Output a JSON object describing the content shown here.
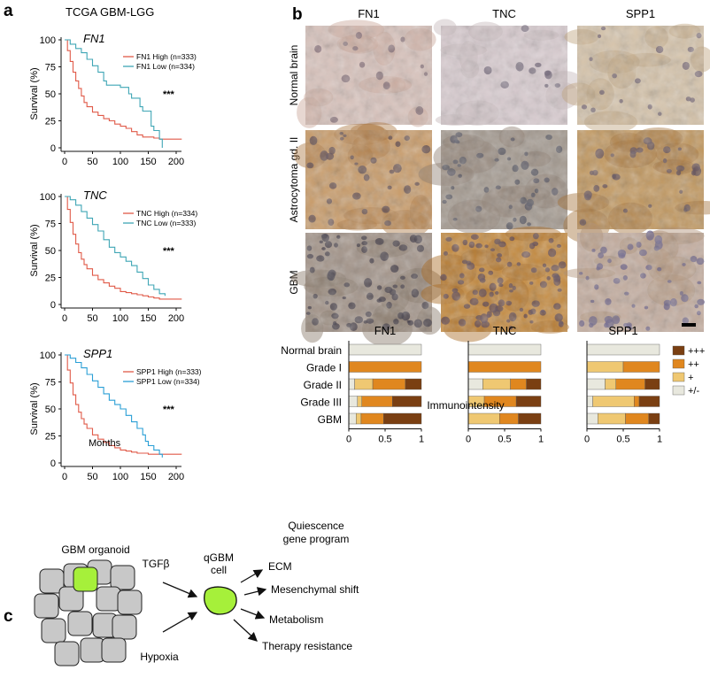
{
  "panel_labels": {
    "a": "a",
    "b": "b",
    "c": "c"
  },
  "panel_a": {
    "title": "TCGA GBM-LGG",
    "y_label": "Survival (%)",
    "x_label": "Months",
    "significance": "***"
  },
  "panel_b": {
    "columns": [
      "FN1",
      "TNC",
      "SPP1"
    ],
    "rows": [
      "Normal brain",
      "Astrocytoma gd. II",
      "GBM"
    ],
    "bar_rows": [
      "Normal brain",
      "Grade I",
      "Grade II",
      "Grade III",
      "GBM"
    ],
    "x_axis_label": "Immunointensity",
    "legend": [
      "+++",
      "++",
      "+",
      "+/-"
    ]
  },
  "panel_c": {
    "organoid_label": "GBM organoid",
    "inputs": [
      "TGFβ",
      "Hypoxia"
    ],
    "cell_label": [
      "qGBM",
      "cell"
    ],
    "program_title": [
      "Quiescence",
      "gene program"
    ],
    "outputs": [
      "ECM",
      "Mesenchymal shift",
      "Metabolism",
      "Therapy resistance"
    ]
  },
  "colors": {
    "high": "#e05a48",
    "low": "#3fa6b5",
    "low_spp1": "#2a9fd6",
    "p3": "#7a3f12",
    "p2": "#e0871f",
    "p1": "#efc872",
    "pm": "#e8e8de",
    "qcell": "#a6f03a",
    "organoid": "#c8c8c8",
    "organoid_highlight": "#a6f03a"
  },
  "chart_data": [
    {
      "type": "line",
      "name": "FN1 survival",
      "gene": "FN1",
      "xlabel": "Months",
      "ylabel": "Survival (%)",
      "xlim": [
        0,
        200
      ],
      "ylim": [
        0,
        100
      ],
      "xticks": [
        0,
        50,
        100,
        150,
        200
      ],
      "yticks": [
        0,
        25,
        50,
        75,
        100
      ],
      "series": [
        {
          "name": "FN1 High (n=333)",
          "x": [
            0,
            5,
            10,
            15,
            20,
            25,
            30,
            35,
            40,
            50,
            60,
            70,
            80,
            90,
            100,
            110,
            120,
            130,
            140,
            150,
            160,
            170,
            180,
            200,
            210
          ],
          "y": [
            100,
            90,
            80,
            70,
            62,
            55,
            48,
            42,
            38,
            33,
            30,
            27,
            25,
            22,
            20,
            18,
            15,
            12,
            10,
            10,
            9,
            8,
            8,
            8,
            8
          ]
        },
        {
          "name": "FN1 Low (n=334)",
          "x": [
            0,
            10,
            20,
            30,
            40,
            50,
            60,
            70,
            75,
            80,
            90,
            100,
            110,
            115,
            120,
            130,
            135,
            140,
            150,
            155,
            160,
            165,
            170,
            175
          ],
          "y": [
            100,
            96,
            92,
            88,
            82,
            76,
            70,
            62,
            58,
            58,
            58,
            56,
            56,
            50,
            46,
            46,
            38,
            34,
            34,
            20,
            16,
            16,
            8,
            0
          ]
        }
      ],
      "annotation": "***"
    },
    {
      "type": "line",
      "name": "TNC survival",
      "gene": "TNC",
      "xlabel": "Months",
      "ylabel": "Survival (%)",
      "xlim": [
        0,
        200
      ],
      "ylim": [
        0,
        100
      ],
      "xticks": [
        0,
        50,
        100,
        150,
        200
      ],
      "yticks": [
        0,
        25,
        50,
        75,
        100
      ],
      "series": [
        {
          "name": "TNC High (n=334)",
          "x": [
            0,
            5,
            10,
            15,
            20,
            25,
            30,
            35,
            40,
            50,
            60,
            70,
            80,
            90,
            100,
            110,
            120,
            130,
            140,
            150,
            160,
            170,
            180,
            200,
            210
          ],
          "y": [
            100,
            88,
            76,
            65,
            56,
            48,
            42,
            37,
            33,
            27,
            23,
            20,
            17,
            15,
            12,
            11,
            10,
            9,
            8,
            7,
            6,
            5,
            5,
            5,
            5
          ]
        },
        {
          "name": "TNC Low (n=333)",
          "x": [
            0,
            10,
            20,
            30,
            40,
            50,
            60,
            70,
            80,
            90,
            100,
            110,
            120,
            130,
            140,
            150,
            160,
            170,
            180
          ],
          "y": [
            100,
            97,
            92,
            86,
            80,
            74,
            68,
            60,
            53,
            48,
            44,
            40,
            36,
            30,
            24,
            18,
            14,
            10,
            8
          ]
        }
      ],
      "annotation": "***"
    },
    {
      "type": "line",
      "name": "SPP1 survival",
      "gene": "SPP1",
      "xlabel": "Months",
      "ylabel": "Survival (%)",
      "xlim": [
        0,
        200
      ],
      "ylim": [
        0,
        100
      ],
      "xticks": [
        0,
        50,
        100,
        150,
        200
      ],
      "yticks": [
        0,
        25,
        50,
        75,
        100
      ],
      "series": [
        {
          "name": "SPP1 High (n=333)",
          "x": [
            0,
            5,
            10,
            15,
            20,
            25,
            30,
            35,
            40,
            50,
            60,
            70,
            80,
            90,
            100,
            110,
            120,
            130,
            140,
            150,
            160,
            170,
            180,
            200,
            210
          ],
          "y": [
            100,
            86,
            74,
            63,
            54,
            47,
            41,
            36,
            32,
            26,
            22,
            19,
            16,
            14,
            12,
            11,
            10,
            9,
            9,
            8,
            8,
            8,
            8,
            8,
            8
          ]
        },
        {
          "name": "SPP1 Low (n=334)",
          "x": [
            0,
            10,
            20,
            30,
            40,
            50,
            60,
            70,
            80,
            90,
            100,
            110,
            120,
            130,
            140,
            145,
            150,
            160,
            170,
            175
          ],
          "y": [
            100,
            97,
            93,
            88,
            82,
            76,
            70,
            64,
            58,
            54,
            50,
            44,
            38,
            32,
            26,
            20,
            16,
            12,
            8,
            5
          ]
        }
      ],
      "annotation": "***"
    },
    {
      "type": "bar",
      "name": "FN1 immunointensity",
      "gene": "FN1",
      "orientation": "horizontal",
      "stacked": true,
      "categories": [
        "Normal brain",
        "Grade I",
        "Grade II",
        "Grade III",
        "GBM"
      ],
      "xlabel": "Immunointensity",
      "xlim": [
        0,
        1
      ],
      "xticks": [
        0,
        0.5,
        1
      ],
      "series": [
        {
          "name": "+/-",
          "values": [
            1,
            0,
            0.08,
            0.12,
            0.1
          ]
        },
        {
          "name": "+",
          "values": [
            0,
            0,
            0.25,
            0.06,
            0.07
          ]
        },
        {
          "name": "++",
          "values": [
            0,
            1,
            0.45,
            0.42,
            0.31
          ]
        },
        {
          "name": "+++",
          "values": [
            0,
            0,
            0.22,
            0.4,
            0.52
          ]
        }
      ]
    },
    {
      "type": "bar",
      "name": "TNC immunointensity",
      "gene": "TNC",
      "orientation": "horizontal",
      "stacked": true,
      "categories": [
        "Normal brain",
        "Grade I",
        "Grade II",
        "Grade III",
        "GBM"
      ],
      "xlabel": "Immunointensity",
      "xlim": [
        0,
        1
      ],
      "xticks": [
        0,
        0.5,
        1
      ],
      "series": [
        {
          "name": "+/-",
          "values": [
            1,
            0,
            0.2,
            0,
            0
          ]
        },
        {
          "name": "+",
          "values": [
            0,
            0,
            0.38,
            0.22,
            0.43
          ]
        },
        {
          "name": "++",
          "values": [
            0,
            1,
            0.22,
            0.44,
            0.26
          ]
        },
        {
          "name": "+++",
          "values": [
            0,
            0,
            0.2,
            0.34,
            0.31
          ]
        }
      ]
    },
    {
      "type": "bar",
      "name": "SPP1 immunointensity",
      "gene": "SPP1",
      "orientation": "horizontal",
      "stacked": true,
      "categories": [
        "Normal brain",
        "Grade I",
        "Grade II",
        "Grade III",
        "GBM"
      ],
      "xlabel": "Immunointensity",
      "xlim": [
        0,
        1
      ],
      "xticks": [
        0,
        0.5,
        1
      ],
      "series": [
        {
          "name": "+/-",
          "values": [
            1,
            0,
            0.25,
            0.08,
            0.15
          ]
        },
        {
          "name": "+",
          "values": [
            0,
            0.5,
            0.15,
            0.57,
            0.38
          ]
        },
        {
          "name": "++",
          "values": [
            0,
            0.5,
            0.4,
            0.07,
            0.32
          ]
        },
        {
          "name": "+++",
          "values": [
            0,
            0,
            0.2,
            0.28,
            0.15
          ]
        }
      ]
    }
  ]
}
